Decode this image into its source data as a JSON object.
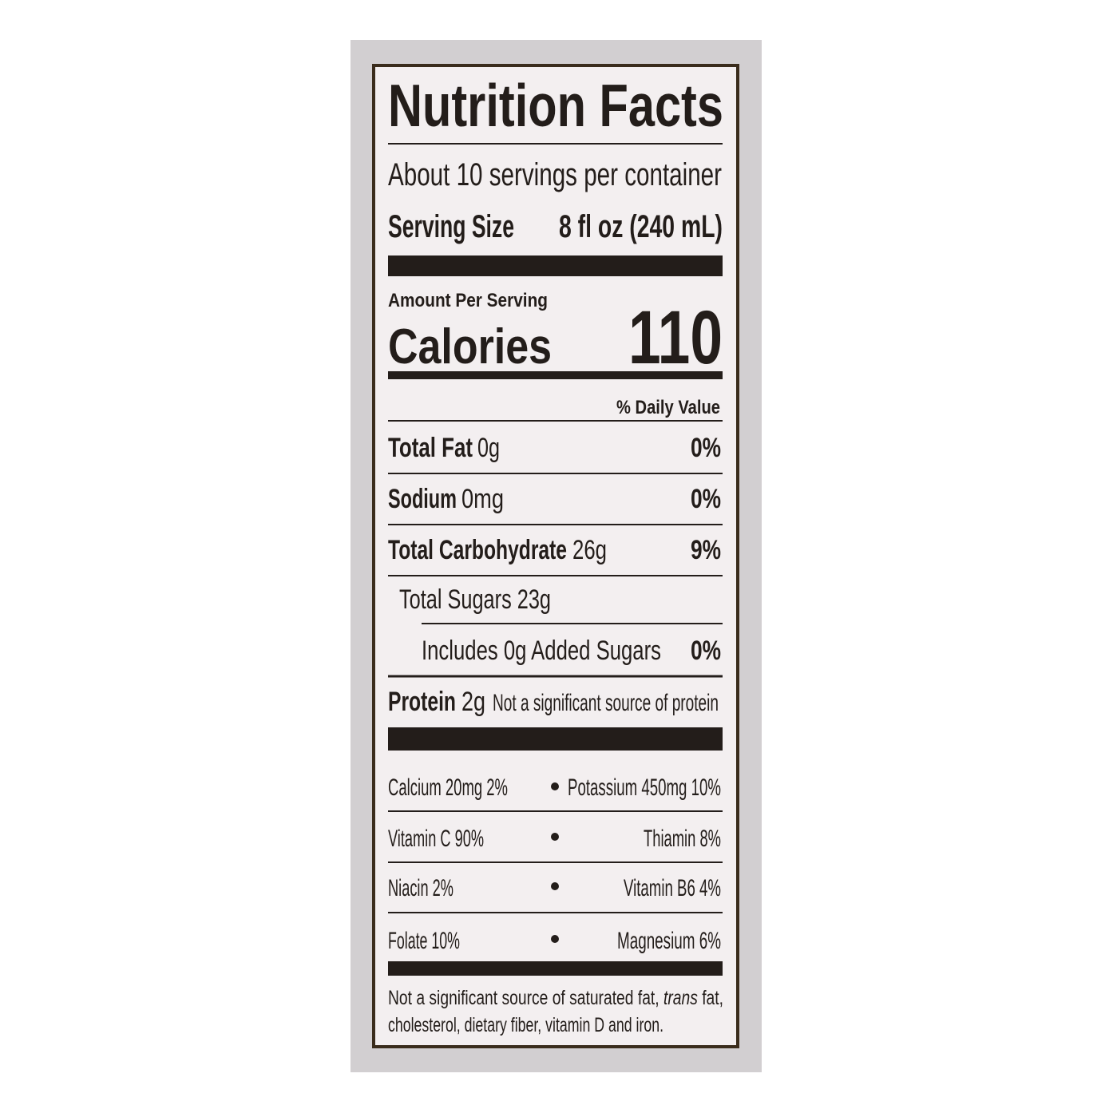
{
  "title": "Nutrition Facts",
  "servings": "About 10 servings per container",
  "serving_size": {
    "label": "Serving Size",
    "value": "8 fl oz (240 mL)"
  },
  "amount_per_serving": "Amount Per Serving",
  "calories": {
    "label": "Calories",
    "value": "110"
  },
  "daily_value_header": "% Daily Value",
  "nutrients": [
    {
      "name": "Total Fat",
      "amount": "0g",
      "dv": "0%"
    },
    {
      "name": "Sodium",
      "amount": "0mg",
      "dv": "0%"
    },
    {
      "name": "Total Carbohydrate",
      "amount": "26g",
      "dv": "9%"
    }
  ],
  "total_sugars": "Total Sugars 23g",
  "added_sugars": {
    "text": "Includes 0g Added Sugars",
    "dv": "0%"
  },
  "protein": {
    "name": "Protein",
    "amount": "2g",
    "note": "Not a significant source of protein"
  },
  "micronutrients": [
    [
      "Calcium 20mg 2%",
      "Potassium 450mg 10%"
    ],
    [
      "Vitamin C 90%",
      "Thiamin 8%"
    ],
    [
      "Niacin 2%",
      "Vitamin B6 4%"
    ],
    [
      "Folate 10%",
      "Magnesium 6%"
    ]
  ],
  "footnote": {
    "before": "Not a significant source of saturated fat, ",
    "italic": "trans",
    "after": " fat,",
    "line2": "cholesterol, dietary fiber, vitamin D and iron."
  }
}
